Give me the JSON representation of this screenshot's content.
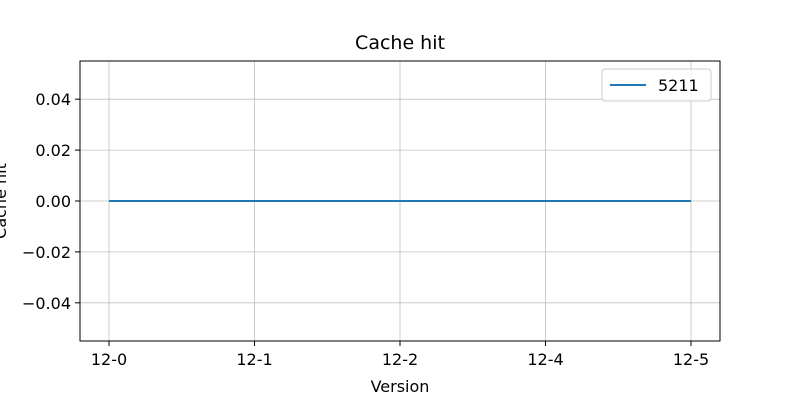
{
  "chart_data": {
    "type": "line",
    "title": "Cache hit",
    "xlabel": "Version",
    "ylabel": "Cache hit",
    "categories": [
      "12-0",
      "12-1",
      "12-2",
      "12-4",
      "12-5"
    ],
    "series": [
      {
        "name": "5211",
        "values": [
          0,
          0,
          0,
          0,
          0
        ],
        "color": "#1f77b4"
      }
    ],
    "ylim": [
      -0.055,
      0.055
    ],
    "yticks": [
      -0.04,
      -0.02,
      0.0,
      0.02,
      0.04
    ],
    "ytick_labels": [
      "−0.04",
      "−0.02",
      "0.00",
      "0.02",
      "0.04"
    ],
    "grid": true,
    "legend_position": "top-right"
  }
}
